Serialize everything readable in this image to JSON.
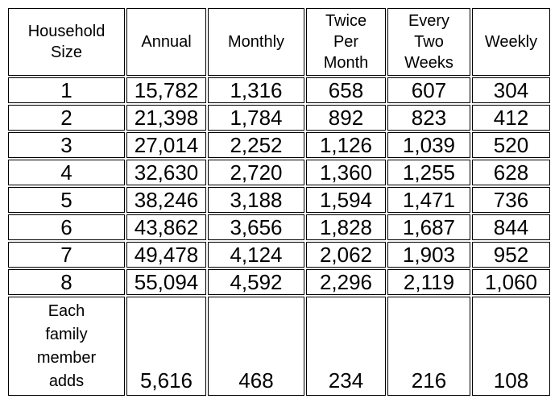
{
  "table": {
    "columns": [
      "Household\nSize",
      "Annual",
      "Monthly",
      "Twice\nPer\nMonth",
      "Every\nTwo\nWeeks",
      "Weekly"
    ],
    "rows": [
      [
        "1",
        "15,782",
        "1,316",
        "658",
        "607",
        "304"
      ],
      [
        "2",
        "21,398",
        "1,784",
        "892",
        "823",
        "412"
      ],
      [
        "3",
        "27,014",
        "2,252",
        "1,126",
        "1,039",
        "520"
      ],
      [
        "4",
        "32,630",
        "2,720",
        "1,360",
        "1,255",
        "628"
      ],
      [
        "5",
        "38,246",
        "3,188",
        "1,594",
        "1,471",
        "736"
      ],
      [
        "6",
        "43,862",
        "3,656",
        "1,828",
        "1,687",
        "844"
      ],
      [
        "7",
        "49,478",
        "4,124",
        "2,062",
        "1,903",
        "952"
      ],
      [
        "8",
        "55,094",
        "4,592",
        "2,296",
        "2,119",
        "1,060"
      ]
    ],
    "footer": [
      "Each\nfamily\nmember\nadds",
      "5,616",
      "468",
      "234",
      "216",
      "108"
    ],
    "colors": {
      "border": "#000000",
      "text": "#000000",
      "background": "#ffffff"
    }
  }
}
